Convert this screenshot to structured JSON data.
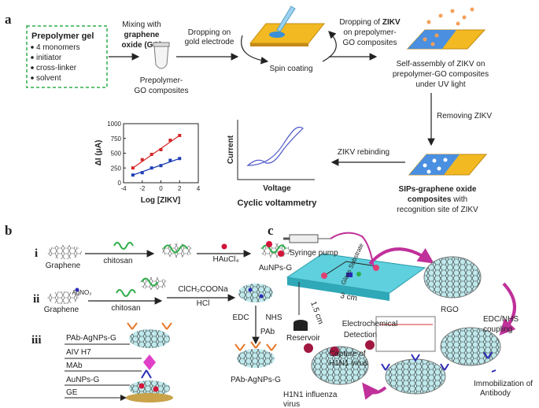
{
  "panel_a": {
    "label": "a",
    "prepolymer": {
      "title": "Prepolymer  gel",
      "items": [
        "4 monomers",
        "initiator",
        "cross-linker",
        "solvent"
      ]
    },
    "mixing": [
      "Mixing with",
      "graphene",
      "oxide (GO)"
    ],
    "tube_label": [
      "Prepolymer-",
      "GO composites"
    ],
    "dropping": [
      "Dropping on",
      "gold electrode"
    ],
    "spin": "Spin coating",
    "zikv_drop": [
      "Dropping of",
      "ZIKV",
      "on prepolymer-",
      "GO  composites"
    ],
    "self_assembly": [
      "Self-assembly of ZIKV on",
      "prepolymer-GO composites",
      "under UV light"
    ],
    "removing": "Removing ZIKV",
    "rebinding": "ZIKV rebinding",
    "sips": [
      "SIPs-graphene oxide",
      "composites",
      "with",
      "recognition site of ZIKV"
    ],
    "plot": {
      "xlabel": "Log [ZIKV]",
      "ylabel": "ΔI (μA)",
      "xlim": [
        -4,
        4
      ],
      "ylim": [
        0,
        1000
      ],
      "xticks": [
        -4,
        -2,
        0,
        2,
        4
      ],
      "yticks": [
        0,
        250,
        500,
        750,
        1000
      ],
      "x": [
        -3,
        -2,
        -1,
        0,
        1,
        2
      ],
      "series": [
        {
          "color": "#d62728",
          "values": [
            250,
            390,
            480,
            560,
            720,
            800
          ]
        },
        {
          "color": "#1f3fb4",
          "values": [
            130,
            170,
            250,
            290,
            380,
            410
          ]
        }
      ]
    },
    "cv": {
      "ylabel": "Current",
      "xlabel": "Voltage",
      "caption": "Cyclic voltammetry"
    }
  },
  "panel_b": {
    "label": "b",
    "rows": [
      {
        "label": "i",
        "texts": [
          "Graphene",
          "chitosan",
          "HAuCl₄",
          "AuNPs-G"
        ]
      },
      {
        "label": "ii",
        "texts": [
          "Graphene",
          "AgNO₃",
          "chitosan",
          "ClCH₂COONa",
          "HCl",
          "EDC",
          "NHS",
          "PAb",
          "PAb-AgNPs-G"
        ]
      },
      {
        "label": "iii",
        "texts": [
          "PAb-AgNPs-G",
          "AIV H7",
          "MAb",
          "AuNPs-G",
          "GE"
        ]
      }
    ]
  },
  "panel_c": {
    "label": "c",
    "syringe": "Syringe pump",
    "reservoir": "Reservoir",
    "width": "1.5 cm",
    "length": "3 cm",
    "substrate": "Glass Substrate",
    "rgo": "RGO",
    "coupling": [
      "EDC/NHS",
      "coupling"
    ],
    "detection": [
      "Electrochemical",
      "Detection"
    ],
    "capture": [
      "Capture of",
      "H1N1 virus"
    ],
    "virus": [
      "H1N1 influenza",
      "virus"
    ],
    "immobilization": [
      "Immobilization of",
      "Antibody"
    ]
  }
}
